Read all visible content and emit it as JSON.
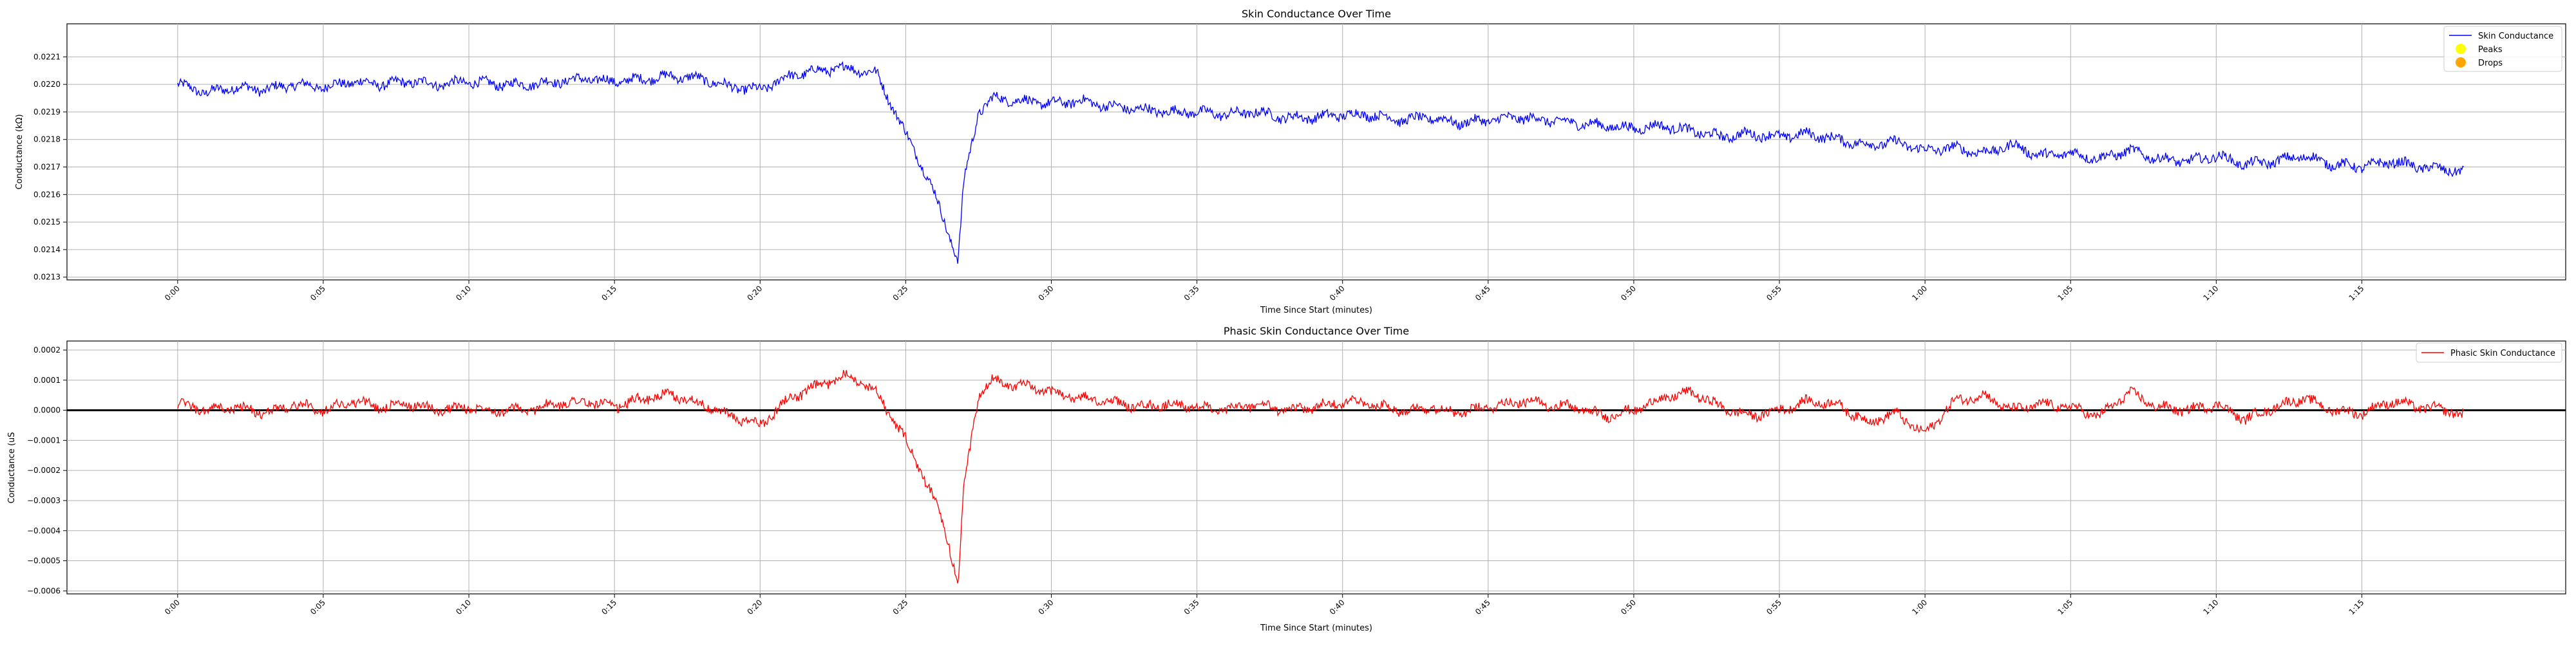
{
  "chart_data": [
    {
      "type": "line",
      "title": "Skin Conductance Over Time",
      "xlabel": "Time Since Start (minutes)",
      "ylabel": "Conductance (kΩ)",
      "x_tick_labels": [
        "0:00",
        "0:05",
        "0:10",
        "0:15",
        "0:20",
        "0:25",
        "0:30",
        "0:35",
        "0:40",
        "0:45",
        "0:50",
        "0:55",
        "1:00",
        "1:05",
        "1:10",
        "1:15"
      ],
      "x_tick_minutes": [
        0,
        5,
        10,
        15,
        20,
        25,
        30,
        35,
        40,
        45,
        50,
        55,
        60,
        65,
        70,
        75
      ],
      "xlim_minutes": [
        -3.8,
        82.0
      ],
      "y_ticks": [
        "0.0213",
        "0.0214",
        "0.0215",
        "0.0216",
        "0.0217",
        "0.0218",
        "0.0219",
        "0.0220",
        "0.0221"
      ],
      "y_tick_values": [
        0.0213,
        0.0214,
        0.0215,
        0.0216,
        0.0217,
        0.0218,
        0.0219,
        0.022,
        0.0221
      ],
      "ylim": [
        0.02129,
        0.02222
      ],
      "grid": true,
      "legend_position": "top-right",
      "legend": [
        {
          "label": "Skin Conductance",
          "marker": "line",
          "color": "#0000ff"
        },
        {
          "label": "Peaks",
          "marker": "dot",
          "color": "#ffff00"
        },
        {
          "label": "Drops",
          "marker": "dot",
          "color": "#ffa500"
        }
      ],
      "series": [
        {
          "name": "Skin Conductance",
          "color": "#0000ff",
          "x_minutes": [
            0,
            1,
            2,
            3,
            4,
            5,
            6,
            7,
            8,
            9,
            10,
            11,
            12,
            13,
            14,
            15,
            16,
            17,
            18,
            19,
            20,
            21,
            22,
            23,
            24,
            25,
            25.5,
            26,
            26.5,
            26.8,
            27,
            27.5,
            28,
            29,
            30,
            31,
            32,
            33,
            34,
            35,
            36,
            37,
            38,
            39,
            40,
            41,
            42,
            43,
            44,
            45,
            46,
            47,
            48,
            49,
            50,
            51,
            52,
            53,
            54,
            55,
            56,
            57,
            58,
            59,
            60,
            61,
            62,
            63,
            64,
            65,
            66,
            67,
            68,
            69,
            70,
            71,
            72,
            73,
            74,
            75,
            76,
            77,
            78,
            78.5
          ],
          "values": [
            0.022,
            0.02197,
            0.02199,
            0.02198,
            0.022,
            0.02199,
            0.02201,
            0.022,
            0.02201,
            0.022,
            0.02201,
            0.022,
            0.022,
            0.02201,
            0.02202,
            0.02201,
            0.02202,
            0.02203,
            0.02202,
            0.02199,
            0.02198,
            0.02203,
            0.02205,
            0.02206,
            0.02204,
            0.02182,
            0.02172,
            0.0216,
            0.02145,
            0.02136,
            0.02165,
            0.0219,
            0.02195,
            0.02194,
            0.02193,
            0.02194,
            0.02192,
            0.02191,
            0.0219,
            0.0219,
            0.02189,
            0.0219,
            0.02188,
            0.02188,
            0.02189,
            0.02189,
            0.02187,
            0.02188,
            0.02186,
            0.02187,
            0.02188,
            0.02187,
            0.02186,
            0.02185,
            0.02184,
            0.02185,
            0.02183,
            0.02181,
            0.02182,
            0.02181,
            0.02182,
            0.0218,
            0.02178,
            0.02179,
            0.02176,
            0.02177,
            0.02175,
            0.02178,
            0.02174,
            0.02175,
            0.02173,
            0.02176,
            0.02173,
            0.02172,
            0.02174,
            0.02171,
            0.02172,
            0.02174,
            0.02171,
            0.0217,
            0.02172,
            0.0217,
            0.02169,
            0.02168
          ]
        }
      ]
    },
    {
      "type": "line",
      "title": "Phasic Skin Conductance Over Time",
      "xlabel": "Time Since Start (minutes)",
      "ylabel": "Conductance (uS",
      "x_tick_labels": [
        "0:00",
        "0:05",
        "0:10",
        "0:15",
        "0:20",
        "0:25",
        "0:30",
        "0:35",
        "0:40",
        "0:45",
        "0:50",
        "0:55",
        "1:00",
        "1:05",
        "1:10",
        "1:15"
      ],
      "x_tick_minutes": [
        0,
        5,
        10,
        15,
        20,
        25,
        30,
        35,
        40,
        45,
        50,
        55,
        60,
        65,
        70,
        75
      ],
      "xlim_minutes": [
        -3.8,
        82.0
      ],
      "y_ticks": [
        "−0.0006",
        "−0.0005",
        "−0.0004",
        "−0.0003",
        "−0.0002",
        "−0.0001",
        "0.0000",
        "0.0001",
        "0.0002"
      ],
      "y_tick_values": [
        -0.0006,
        -0.0005,
        -0.0004,
        -0.0003,
        -0.0002,
        -0.0001,
        0.0,
        0.0001,
        0.0002
      ],
      "ylim": [
        -0.00061,
        0.00023
      ],
      "zero_line": 0.0,
      "grid": true,
      "legend_position": "top-right",
      "legend": [
        {
          "label": "Phasic Skin Conductance",
          "marker": "line",
          "color": "#ff0000"
        }
      ],
      "series": [
        {
          "name": "Phasic Skin Conductance",
          "color": "#ff0000",
          "x_minutes": [
            0,
            1,
            2,
            3,
            4,
            5,
            6,
            7,
            8,
            9,
            10,
            11,
            12,
            13,
            14,
            15,
            16,
            17,
            18,
            19,
            20,
            21,
            22,
            23,
            24,
            25,
            25.5,
            26,
            26.5,
            26.8,
            27,
            27.5,
            28,
            29,
            30,
            31,
            32,
            33,
            34,
            35,
            36,
            37,
            38,
            39,
            40,
            41,
            42,
            43,
            44,
            45,
            46,
            47,
            48,
            49,
            50,
            51,
            52,
            53,
            54,
            55,
            56,
            57,
            58,
            59,
            60,
            61,
            62,
            63,
            64,
            65,
            66,
            67,
            68,
            69,
            70,
            71,
            72,
            73,
            74,
            75,
            76,
            77,
            78,
            78.5
          ],
          "values": [
            2e-05,
            0.0,
            1e-05,
            -1e-05,
            2e-05,
            0.0,
            3e-05,
            1e-05,
            2e-05,
            0.0,
            1e-05,
            0.0,
            0.0,
            2e-05,
            3e-05,
            1e-05,
            4e-05,
            5e-05,
            2e-05,
            -2e-05,
            -5e-05,
            4e-05,
            8e-05,
            0.00012,
            6e-05,
            -0.0001,
            -0.0002,
            -0.0003,
            -0.00045,
            -0.00058,
            -0.00025,
            5e-05,
            0.0001,
            8e-05,
            6e-05,
            4e-05,
            3e-05,
            1e-05,
            2e-05,
            1e-05,
            0.0,
            2e-05,
            0.0,
            1e-05,
            3e-05,
            2e-05,
            0.0,
            1e-05,
            -1e-05,
            1e-05,
            3e-05,
            2e-05,
            1e-05,
            -2e-05,
            0.0,
            4e-05,
            6e-05,
            1e-05,
            -2e-05,
            0.0,
            3e-05,
            2e-05,
            -4e-05,
            -1e-05,
            -8e-05,
            3e-05,
            5e-05,
            0.0,
            2e-05,
            1e-05,
            -2e-05,
            6e-05,
            1e-05,
            0.0,
            2e-05,
            -3e-05,
            1e-05,
            4e-05,
            0.0,
            -1e-05,
            3e-05,
            1e-05,
            0.0,
            -2e-05
          ]
        }
      ]
    }
  ]
}
